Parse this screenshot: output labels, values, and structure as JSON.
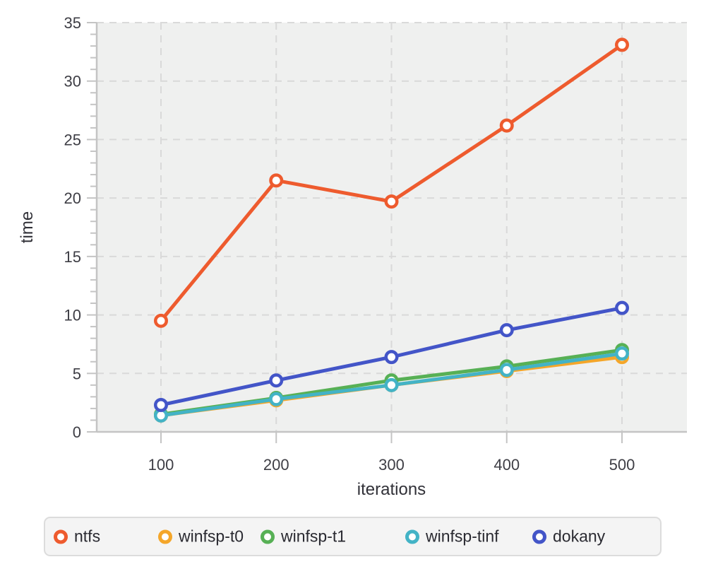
{
  "chart_data": {
    "type": "line",
    "title": "",
    "xlabel": "iterations",
    "ylabel": "time",
    "x": [
      100,
      200,
      300,
      400,
      500
    ],
    "series": [
      {
        "name": "ntfs",
        "color": "#ee5b2e",
        "values": [
          9.5,
          21.5,
          19.7,
          26.2,
          33.1
        ]
      },
      {
        "name": "winfsp-t0",
        "color": "#f4a62a",
        "values": [
          1.4,
          2.7,
          4.0,
          5.2,
          6.4
        ]
      },
      {
        "name": "winfsp-t1",
        "color": "#57b055",
        "values": [
          1.5,
          2.9,
          4.4,
          5.6,
          7.0
        ]
      },
      {
        "name": "winfsp-tinf",
        "color": "#43b3c6",
        "values": [
          1.4,
          2.8,
          4.0,
          5.3,
          6.7
        ]
      },
      {
        "name": "dokany",
        "color": "#4355c8",
        "values": [
          2.3,
          4.4,
          6.4,
          8.7,
          10.6
        ]
      }
    ],
    "ylim": [
      0,
      35
    ],
    "yticks": [
      0,
      5,
      10,
      15,
      20,
      25,
      30,
      35
    ],
    "y_minor_tick_step": 1,
    "xticks": [
      100,
      200,
      300,
      400,
      500
    ],
    "grid": true,
    "grid_style": "dashed",
    "legend_position": "bottom",
    "marker": "open-circle",
    "colors": {
      "plot_background": "#eff0ef",
      "gridline": "#d9d9d9",
      "axis": "#c4c4c4",
      "tick_label": "#3e3e45",
      "axis_title": "#313138"
    }
  }
}
